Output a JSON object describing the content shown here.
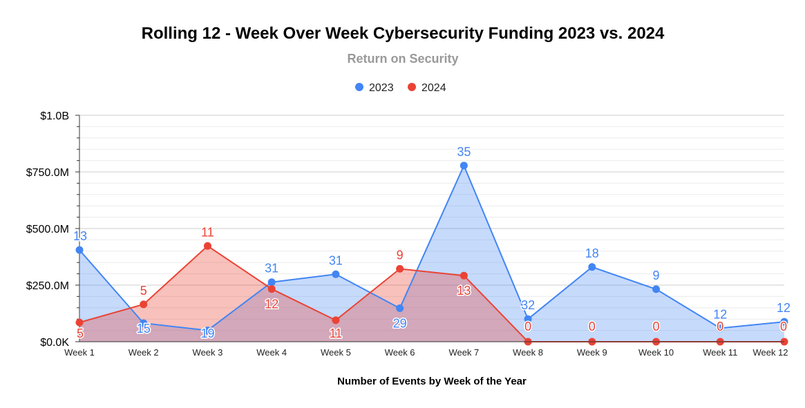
{
  "chart_data": {
    "type": "area",
    "title": "Rolling 12 - Week Over Week Cybersecurity Funding 2023 vs. 2024",
    "subtitle": "Return on Security",
    "xlabel": "Number of Events by Week of the Year",
    "ylabel": "",
    "ylim": [
      0,
      1000
    ],
    "y_unit": "$M",
    "yticks": [
      {
        "value": 0,
        "label": "$0.0K"
      },
      {
        "value": 250,
        "label": "$250.0M"
      },
      {
        "value": 500,
        "label": "$500.0M"
      },
      {
        "value": 750,
        "label": "$750.0M"
      },
      {
        "value": 1000,
        "label": "$1.0B"
      }
    ],
    "categories": [
      "Week 1",
      "Week 2",
      "Week 3",
      "Week 4",
      "Week 5",
      "Week 6",
      "Week 7",
      "Week 8",
      "Week 9",
      "Week 10",
      "Week 11",
      "Week 12"
    ],
    "legend_position": "top-center",
    "series": [
      {
        "name": "2023",
        "color": "#4285f4",
        "fill": "#c6d9f8",
        "values": [
          405,
          82,
          50,
          263,
          298,
          148,
          778,
          100,
          330,
          232,
          60,
          88
        ],
        "labels": [
          "13",
          "15",
          "19",
          "31",
          "31",
          "29",
          "35",
          "32",
          "18",
          "9",
          "12",
          "12"
        ]
      },
      {
        "name": "2024",
        "color": "#ea4335",
        "fill": "#f6b4ac",
        "values": [
          85,
          165,
          423,
          233,
          95,
          322,
          292,
          0,
          0,
          0,
          0,
          0
        ],
        "labels": [
          "5",
          "5",
          "11",
          "12",
          "11",
          "9",
          "13",
          "0",
          "0",
          "0",
          "0",
          "0"
        ]
      }
    ]
  }
}
